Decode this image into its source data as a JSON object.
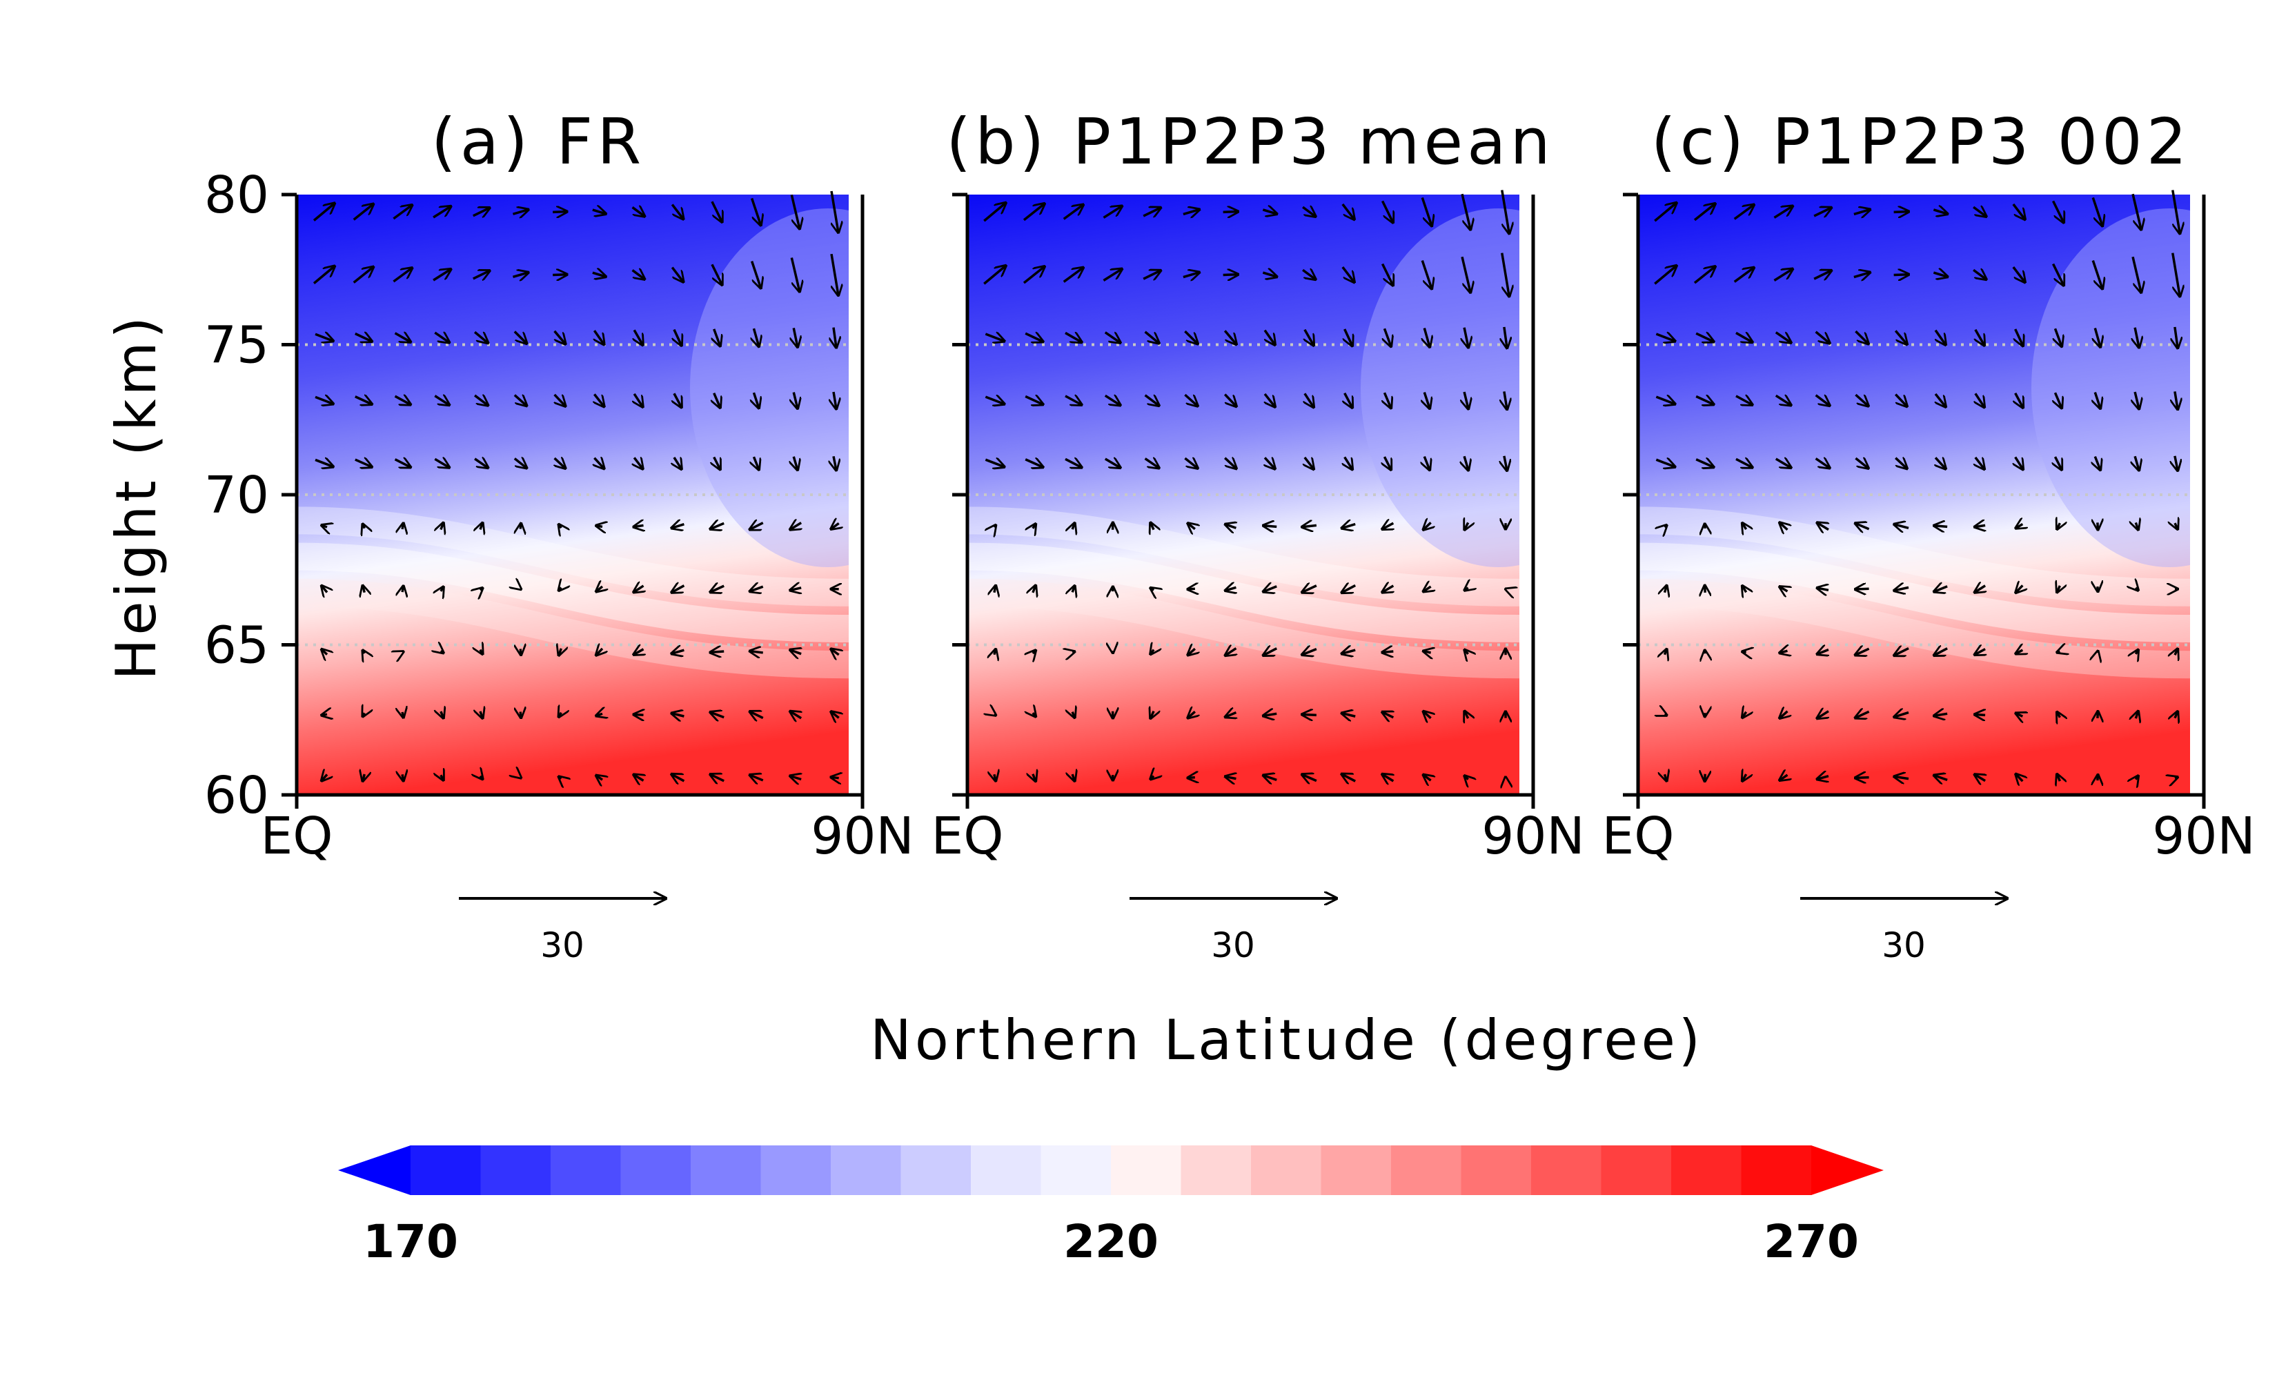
{
  "figure": {
    "xlabel": "Northern Latitude (degree)",
    "ylabel": "Height (km)"
  },
  "chart_data": [
    {
      "type": "heatmap",
      "title": "(a) FR",
      "x_ticks": [
        "EQ",
        "90N"
      ],
      "y_ticks": [
        "60",
        "65",
        "70",
        "75",
        "80"
      ],
      "xlim": [
        0,
        90
      ],
      "ylim": [
        60,
        80
      ],
      "reference_vector": "30",
      "has_y_tick_labels": true
    },
    {
      "type": "heatmap",
      "title": "(b) P1P2P3 mean",
      "x_ticks": [
        "EQ",
        "90N"
      ],
      "y_ticks": [],
      "xlim": [
        0,
        90
      ],
      "ylim": [
        60,
        80
      ],
      "reference_vector": "30",
      "has_y_tick_labels": false
    },
    {
      "type": "heatmap",
      "title": "(c) P1P2P3 002",
      "x_ticks": [
        "EQ",
        "90N"
      ],
      "y_ticks": [],
      "xlim": [
        0,
        90
      ],
      "ylim": [
        60,
        80
      ],
      "reference_vector": "30",
      "has_y_tick_labels": false
    }
  ],
  "colorbar": {
    "min": 170,
    "max": 270,
    "step": 5,
    "labels": [
      "170",
      "220",
      "270"
    ],
    "colors": [
      "#0000ff",
      "#1a1aff",
      "#3333ff",
      "#4d4dff",
      "#6666ff",
      "#8080ff",
      "#9999ff",
      "#b3b3ff",
      "#ccccff",
      "#e6e6ff",
      "#f2f2ff",
      "#fff2f2",
      "#ffd6d6",
      "#ffbfbf",
      "#ffa6a6",
      "#ff8c8c",
      "#ff7373",
      "#ff5959",
      "#ff4040",
      "#ff2626",
      "#ff0d0d",
      "#ff0000"
    ]
  }
}
